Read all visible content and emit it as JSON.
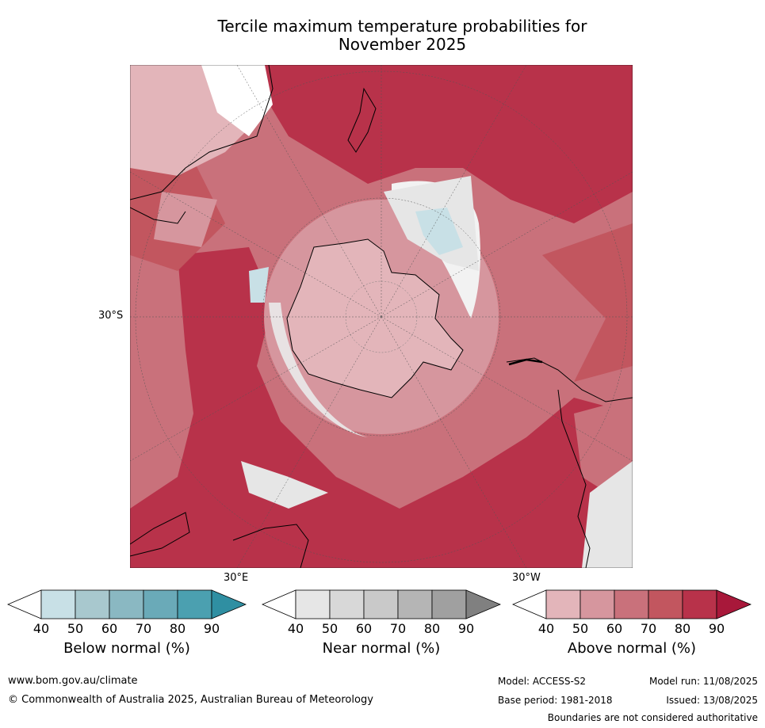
{
  "title": {
    "line1": "Tercile maximum temperature probabilities for",
    "line2": "November 2025"
  },
  "map": {
    "projection": "south-polar-stereographic",
    "lat_label": "30°S",
    "lon_labels": {
      "east": "30°E",
      "west": "30°W"
    },
    "features": [
      "antarctica-outline",
      "australia-outline",
      "south-america-outline",
      "southern-africa-outline",
      "new-zealand-outline"
    ]
  },
  "colorbars": [
    {
      "id": "below",
      "label": "Below normal (%)",
      "ticks": [
        "40",
        "50",
        "60",
        "70",
        "80",
        "90"
      ],
      "colors": [
        "#ffffff",
        "#c8e0e6",
        "#a8c8ce",
        "#8ab8c2",
        "#6aaab8",
        "#4ba0b0",
        "#2f8fa2"
      ]
    },
    {
      "id": "near",
      "label": "Near normal (%)",
      "ticks": [
        "40",
        "50",
        "60",
        "70",
        "80",
        "90"
      ],
      "colors": [
        "#ffffff",
        "#e6e6e6",
        "#d8d8d8",
        "#c9c9c9",
        "#b5b5b5",
        "#a0a0a0",
        "#808080"
      ]
    },
    {
      "id": "above",
      "label": "Above normal (%)",
      "ticks": [
        "40",
        "50",
        "60",
        "70",
        "80",
        "90"
      ],
      "colors": [
        "#ffffff",
        "#e3b5ba",
        "#d6969e",
        "#c9717b",
        "#c2565f",
        "#b8324a",
        "#a8183a"
      ]
    }
  ],
  "footer": {
    "url": "www.bom.gov.au/climate",
    "copyright": "© Commonwealth of Australia 2025, Australian Bureau of Meteorology",
    "model": "Model: ACCESS-S2",
    "model_run": "Model run: 11/08/2025",
    "base_period": "Base period: 1981-2018",
    "issued": "Issued: 13/08/2025",
    "disclaimer": "Boundaries are not considered authoritative"
  }
}
